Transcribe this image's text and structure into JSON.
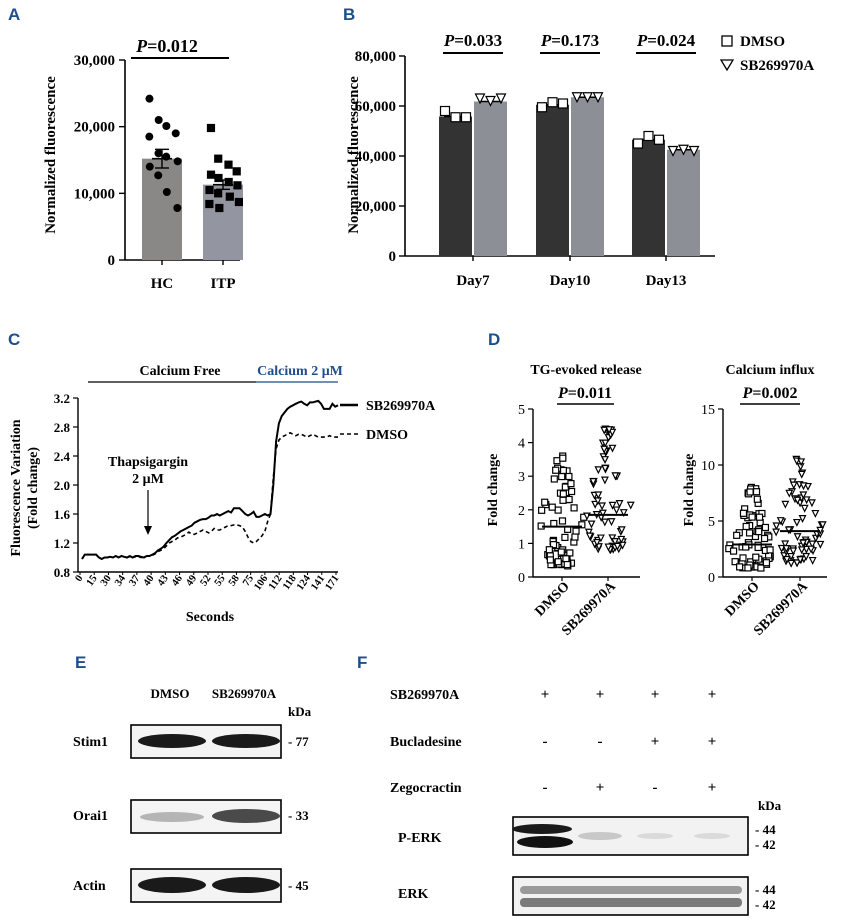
{
  "colors": {
    "panel_label": "#1f4e8c",
    "dark_bar": "#333333",
    "grey_bar": "#8c8f96",
    "calcium_blue": "#1f4e8c"
  },
  "panelA": {
    "label": "A",
    "ylabel": "Normalized fluorescence",
    "ticks": [
      "0",
      "10,000",
      "20,000",
      "30,000"
    ],
    "pvalue": "=0.012",
    "categories": [
      "HC",
      "ITP"
    ]
  },
  "panelB": {
    "label": "B",
    "ylabel": "Normalized fluorescence",
    "ticks": [
      "0",
      "20,000",
      "40,000",
      "60,000",
      "80,000"
    ],
    "categories": [
      "Day7",
      "Day10",
      "Day13"
    ],
    "pvalues": [
      "=0.033",
      "=0.173",
      "=0.024"
    ],
    "legend": [
      "DMSO",
      "SB269970A"
    ]
  },
  "panelC": {
    "label": "C",
    "ylabel1": "Fluorescence Variation",
    "ylabel2": "(Fold change)",
    "xlabel": "Seconds",
    "calcium_free": "Calcium Free",
    "calcium_2": "Calcium 2 μM",
    "thaps1": "Thapsigargin",
    "thaps2": "2 μM",
    "yticks": [
      "0.8",
      "1.2",
      "1.6",
      "2.0",
      "2.4",
      "2.8",
      "3.2"
    ],
    "xticks": [
      "0",
      "15",
      "30",
      "34",
      "37",
      "40",
      "43",
      "46",
      "49",
      "52",
      "55",
      "58",
      "75",
      "106",
      "112",
      "118",
      "124",
      "141",
      "171"
    ],
    "legend": [
      "SB269970A",
      "DMSO"
    ]
  },
  "panelD": {
    "label": "D",
    "left_title": "TG-evoked release",
    "left_p": "=0.011",
    "left_yticks": [
      "0",
      "1",
      "2",
      "3",
      "4",
      "5"
    ],
    "right_title": "Calcium influx",
    "right_p": "=0.002",
    "right_yticks": [
      "0",
      "5",
      "10",
      "15"
    ],
    "ylabel": "Fold change",
    "groups": [
      "DMSO",
      "SB269970A"
    ]
  },
  "panelE": {
    "label": "E",
    "lanes": [
      "DMSO",
      "SB269970A"
    ],
    "kda": "kDa",
    "rows": [
      {
        "name": "Stim1",
        "kda": "- 77"
      },
      {
        "name": "Orai1",
        "kda": "- 33"
      },
      {
        "name": "Actin",
        "kda": "- 45"
      }
    ]
  },
  "panelF": {
    "label": "F",
    "conditions": [
      {
        "name": "SB269970A",
        "signs": [
          "+",
          "+",
          "+",
          "+"
        ]
      },
      {
        "name": "Bucladesine",
        "signs": [
          "-",
          "-",
          "+",
          "+"
        ]
      },
      {
        "name": "Zegocractin",
        "signs": [
          "-",
          "+",
          "-",
          "+"
        ]
      }
    ],
    "kda": "kDa",
    "blots": [
      {
        "name": "P-ERK",
        "kda_top": "- 44",
        "kda_bottom": "- 42"
      },
      {
        "name": "ERK",
        "kda_top": "- 44",
        "kda_bottom": "- 42"
      }
    ]
  },
  "chart_data": [
    {
      "type": "bar",
      "panel": "A",
      "categories": [
        "HC",
        "ITP"
      ],
      "values": [
        15200,
        11300
      ],
      "errors": [
        1400,
        700
      ],
      "ylabel": "Normalized fluorescence",
      "ylim": [
        0,
        30000
      ],
      "points": {
        "HC": [
          24200,
          21000,
          20100,
          19000,
          18500,
          16000,
          15500,
          14800,
          14000,
          12700,
          10200,
          7800
        ],
        "ITP": [
          19800,
          15200,
          14300,
          13300,
          12800,
          12300,
          11700,
          11200,
          10500,
          10000,
          9500,
          8700,
          8400,
          7800
        ]
      },
      "annotation": "P=0.012"
    },
    {
      "type": "bar",
      "panel": "B",
      "categories": [
        "Day7",
        "Day10",
        "Day13"
      ],
      "series": [
        {
          "name": "DMSO",
          "values": [
            55800,
            60500,
            46500
          ],
          "points": [
            [
              58000,
              55500,
              55500
            ],
            [
              59500,
              61500,
              61000
            ],
            [
              45000,
              48000,
              46500
            ]
          ]
        },
        {
          "name": "SB269970A",
          "values": [
            61800,
            63500,
            42500
          ],
          "points": [
            [
              63000,
              62000,
              63000
            ],
            [
              63500,
              63500,
              63500
            ],
            [
              42000,
              42500,
              42000
            ]
          ]
        }
      ],
      "ylabel": "Normalized fluorescence",
      "ylim": [
        0,
        80000
      ],
      "annotations": [
        "P=0.033",
        "P=0.173",
        "P=0.024"
      ]
    },
    {
      "type": "line",
      "panel": "C",
      "xlabel": "Seconds",
      "ylabel": "Fluorescence Variation (Fold change)",
      "ylim": [
        0.8,
        3.2
      ],
      "x_index": [
        0,
        1,
        2,
        3,
        4,
        5,
        6,
        7,
        8,
        9,
        10,
        11,
        12,
        13,
        14,
        15,
        16,
        17,
        18,
        19,
        20,
        21,
        22,
        23,
        24,
        25,
        26,
        27,
        28,
        29,
        30,
        31,
        32,
        33,
        34,
        35,
        36,
        37,
        38,
        39,
        40,
        41,
        42,
        43,
        44,
        45,
        46,
        47,
        48,
        49,
        50,
        51,
        52,
        53,
        54,
        55,
        56,
        57,
        58,
        59,
        60,
        61,
        62,
        63,
        64,
        65,
        66,
        67,
        68,
        69,
        70,
        71,
        72,
        73,
        74,
        75,
        76,
        77,
        78,
        79,
        80,
        81,
        82,
        83,
        84,
        85,
        86,
        87,
        88,
        89,
        90,
        91
      ],
      "series": [
        {
          "name": "SB269970A",
          "values": [
            0.98,
            1.04,
            1.04,
            1.04,
            1.04,
            1.04,
            1.0,
            0.98,
            1.0,
            1.0,
            1.01,
            1.0,
            1.02,
            1.0,
            1.02,
            1.01,
            1.0,
            1.02,
            1.0,
            1.02,
            1.02,
            1.01,
            1.0,
            1.02,
            1.02,
            1.04,
            1.06,
            1.1,
            1.12,
            1.15,
            1.2,
            1.24,
            1.28,
            1.3,
            1.33,
            1.36,
            1.38,
            1.4,
            1.42,
            1.44,
            1.48,
            1.5,
            1.52,
            1.53,
            1.53,
            1.55,
            1.58,
            1.58,
            1.6,
            1.58,
            1.6,
            1.62,
            1.64,
            1.62,
            1.68,
            1.68,
            1.68,
            1.64,
            1.6,
            1.58,
            1.6,
            1.63,
            1.56,
            1.56,
            1.58,
            1.6,
            1.58,
            1.6,
            2.0,
            2.6,
            2.85,
            2.95,
            3.0,
            3.05,
            3.08,
            3.1,
            3.12,
            3.14,
            3.15,
            3.12,
            3.1,
            3.14,
            3.14,
            3.15,
            3.16,
            3.12,
            3.05,
            3.05,
            3.05,
            3.12,
            3.08,
            3.1
          ]
        },
        {
          "name": "DMSO",
          "values": [
            0.98,
            1.04,
            1.04,
            1.04,
            1.04,
            1.04,
            1.0,
            0.98,
            1.0,
            1.0,
            1.01,
            1.0,
            1.02,
            1.0,
            1.02,
            1.01,
            1.0,
            1.01,
            1.0,
            1.01,
            1.01,
            1.0,
            1.0,
            1.02,
            1.02,
            1.03,
            1.05,
            1.08,
            1.1,
            1.12,
            1.16,
            1.2,
            1.22,
            1.24,
            1.27,
            1.28,
            1.3,
            1.32,
            1.35,
            1.32,
            1.32,
            1.34,
            1.36,
            1.38,
            1.36,
            1.34,
            1.36,
            1.4,
            1.38,
            1.38,
            1.4,
            1.42,
            1.44,
            1.44,
            1.45,
            1.45,
            1.44,
            1.42,
            1.36,
            1.28,
            1.22,
            1.2,
            1.22,
            1.26,
            1.3,
            1.36,
            1.5,
            1.6,
            2.1,
            2.5,
            2.62,
            2.66,
            2.68,
            2.7,
            2.72,
            2.7,
            2.68,
            2.7,
            2.7,
            2.68,
            2.66,
            2.68,
            2.7,
            2.68,
            2.66,
            2.66,
            2.66,
            2.66,
            2.68,
            2.66,
            2.66,
            2.66
          ]
        }
      ]
    },
    {
      "type": "scatter",
      "panel": "D-left",
      "title": "TG-evoked release",
      "categories": [
        "DMSO",
        "SB269970A"
      ],
      "means": [
        1.5,
        1.85
      ],
      "ylim": [
        0,
        5
      ],
      "ylabel": "Fold change",
      "annotation": "P=0.011"
    },
    {
      "type": "scatter",
      "panel": "D-right",
      "title": "Calcium influx",
      "categories": [
        "DMSO",
        "SB269970A"
      ],
      "means": [
        2.9,
        4.1
      ],
      "ylim": [
        0,
        15
      ],
      "ylabel": "Fold change",
      "annotation": "P=0.002"
    }
  ]
}
